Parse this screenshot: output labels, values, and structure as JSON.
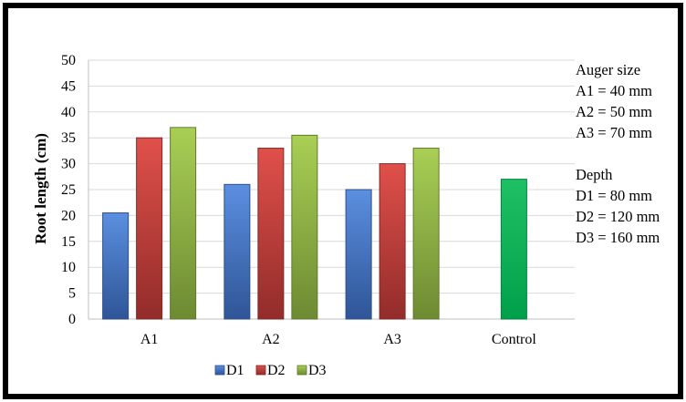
{
  "chart_data": {
    "type": "bar",
    "categories": [
      "A1",
      "A2",
      "A3",
      "Control"
    ],
    "series": [
      {
        "name": "D1",
        "values": [
          20.5,
          26,
          25,
          null
        ]
      },
      {
        "name": "D2",
        "values": [
          35,
          33,
          30,
          null
        ]
      },
      {
        "name": "D3",
        "values": [
          37,
          35.5,
          33,
          null
        ]
      },
      {
        "name": "",
        "values": [
          null,
          null,
          null,
          27
        ]
      }
    ],
    "ylabel": "Root length (cm)",
    "xlabel": "",
    "title": "",
    "ylim": [
      0,
      50
    ],
    "yticks": [
      0,
      5,
      10,
      15,
      20,
      25,
      30,
      35,
      40,
      45,
      50
    ],
    "grid": true,
    "legend": "bottom",
    "colors": {
      "D1": "#4472c4",
      "D2": "#c0504d",
      "D3": "#9bbb59",
      "Control": "#00b050"
    },
    "annotations": [
      [
        "Auger size",
        "A1 = 40 mm",
        "A2 = 50 mm",
        "A3 = 70 mm"
      ],
      [
        "Depth",
        "D1 = 80 mm",
        "D2 = 120 mm",
        "D3 = 160 mm"
      ]
    ]
  }
}
